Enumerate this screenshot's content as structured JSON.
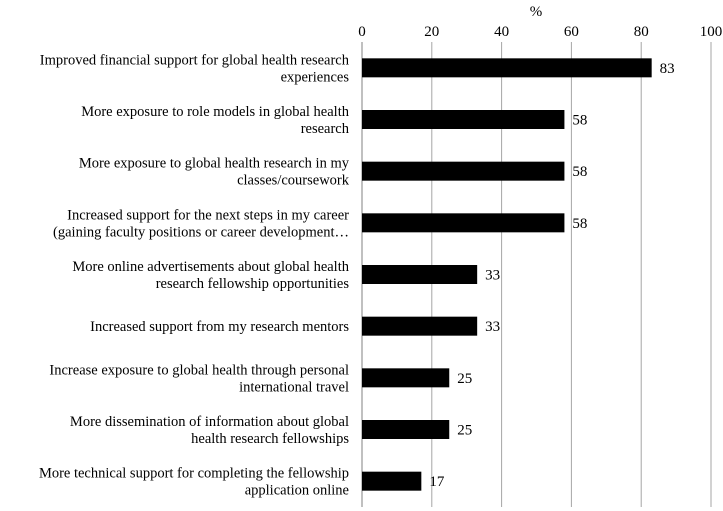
{
  "chart_data": {
    "type": "bar",
    "orientation": "horizontal",
    "xlabel": "%",
    "xlim": [
      0,
      100
    ],
    "xticks": [
      0,
      20,
      40,
      60,
      80,
      100
    ],
    "axis_position": "top",
    "grid": true,
    "legend": "none",
    "bar_color": "#000000",
    "categories": [
      [
        "Improved financial support for global health research",
        "experiences"
      ],
      [
        "More exposure to role models in global health",
        "research"
      ],
      [
        "More exposure to global health research in my",
        "classes/coursework"
      ],
      [
        "Increased support for the next steps in my career",
        "(gaining faculty positions or career development…"
      ],
      [
        "More online advertisements about global health",
        "research fellowship opportunities"
      ],
      [
        "Increased support from my research mentors"
      ],
      [
        "Increase exposure to global health through personal",
        "international travel"
      ],
      [
        "More dissemination of information about global",
        "health research fellowships"
      ],
      [
        "More technical support for completing the fellowship",
        "application online"
      ]
    ],
    "values": [
      83,
      58,
      58,
      58,
      33,
      33,
      25,
      25,
      17
    ]
  }
}
